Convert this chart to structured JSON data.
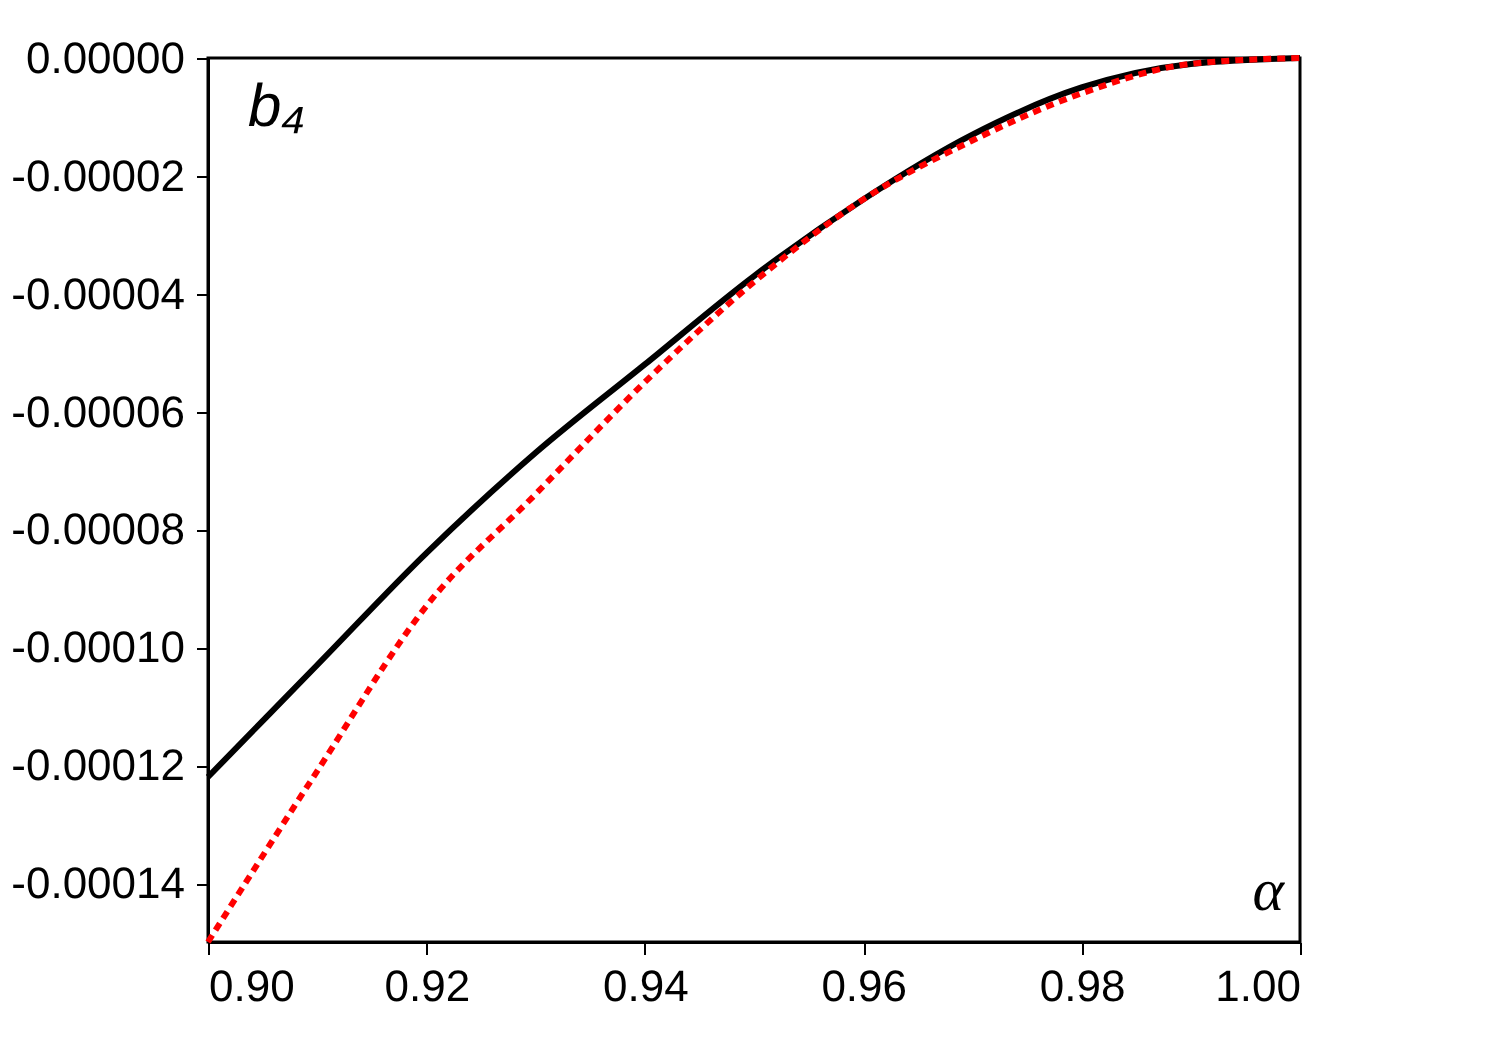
{
  "chart_data": {
    "type": "line",
    "x": [
      0.9,
      0.91,
      0.92,
      0.93,
      0.94,
      0.95,
      0.96,
      0.97,
      0.98,
      0.99,
      1.0
    ],
    "series": [
      {
        "color": "#000000",
        "line_style": "solid",
        "values": [
          -0.000122,
          -0.000103,
          -8.4e-05,
          -6.7e-05,
          -5.2e-05,
          -3.7e-05,
          -2.4e-05,
          -1.3e-05,
          -5e-06,
          -1e-06,
          0
        ]
      },
      {
        "color": "#ff0000",
        "line_style": "dashed",
        "values": [
          -0.00015,
          -0.000121,
          -9.3e-05,
          -7.4e-05,
          -5.5e-05,
          -3.8e-05,
          -2.4e-05,
          -1.4e-05,
          -6e-06,
          -1e-06,
          0
        ]
      }
    ],
    "xlim": [
      0.9,
      1.0
    ],
    "xticks": [
      {
        "value": 0.9,
        "label": "0.90"
      },
      {
        "value": 0.92,
        "label": "0.92"
      },
      {
        "value": 0.94,
        "label": "0.94"
      },
      {
        "value": 0.96,
        "label": "0.96"
      },
      {
        "value": 0.98,
        "label": "0.98"
      },
      {
        "value": 1.0,
        "label": "1.00"
      }
    ],
    "ylim": [
      -0.00015,
      0
    ],
    "yticks": [
      {
        "value": 0,
        "label": "0.00000"
      },
      {
        "value": -2e-05,
        "label": "-0.00002"
      },
      {
        "value": -4e-05,
        "label": "-0.00004"
      },
      {
        "value": -6e-05,
        "label": "-0.00006"
      },
      {
        "value": -8e-05,
        "label": "-0.00008"
      },
      {
        "value": -0.0001,
        "label": "-0.00010"
      },
      {
        "value": -0.00012,
        "label": "-0.00012"
      },
      {
        "value": -0.00014,
        "label": "-0.00014"
      }
    ],
    "annotations": [
      "b₄",
      "α"
    ],
    "marker": "none"
  }
}
